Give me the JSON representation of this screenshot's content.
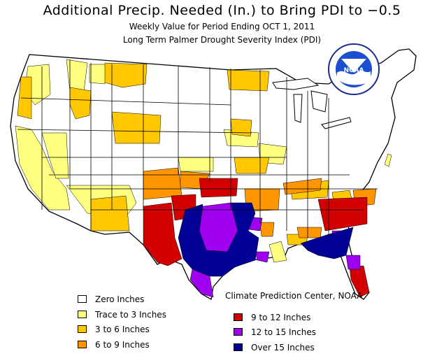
{
  "header": {
    "title": "Additional Precip. Needed (In.) to Bring PDI to −0.5",
    "subtitle": "Weekly Value for Period Ending OCT  1, 2011",
    "index_name": "Long Term Palmer Drought Severity Index (PDI)"
  },
  "logo": {
    "text": "NOAA"
  },
  "credit": "Climate Prediction Center, NOAA",
  "colors": {
    "zero": "#ffffff",
    "trace": "#ffff80",
    "three_six": "#ffc800",
    "six_nine": "#ff9600",
    "nine_twelve": "#d20000",
    "twelve_fifteen": "#a000f0",
    "over_fifteen": "#000096",
    "water": "#ffffff",
    "boundary": "#000000"
  },
  "legend": [
    {
      "label": "Zero Inches",
      "color": "#ffffff"
    },
    {
      "label": "Trace to 3 Inches",
      "color": "#ffff80"
    },
    {
      "label": "3 to 6 Inches",
      "color": "#ffc800"
    },
    {
      "label": "6 to 9 Inches",
      "color": "#ff9600"
    },
    {
      "label": "9 to 12 Inches",
      "color": "#d20000"
    },
    {
      "label": "12 to 15 Inches",
      "color": "#a000f0"
    },
    {
      "label": "Over 15 Inches",
      "color": "#000096"
    }
  ]
}
